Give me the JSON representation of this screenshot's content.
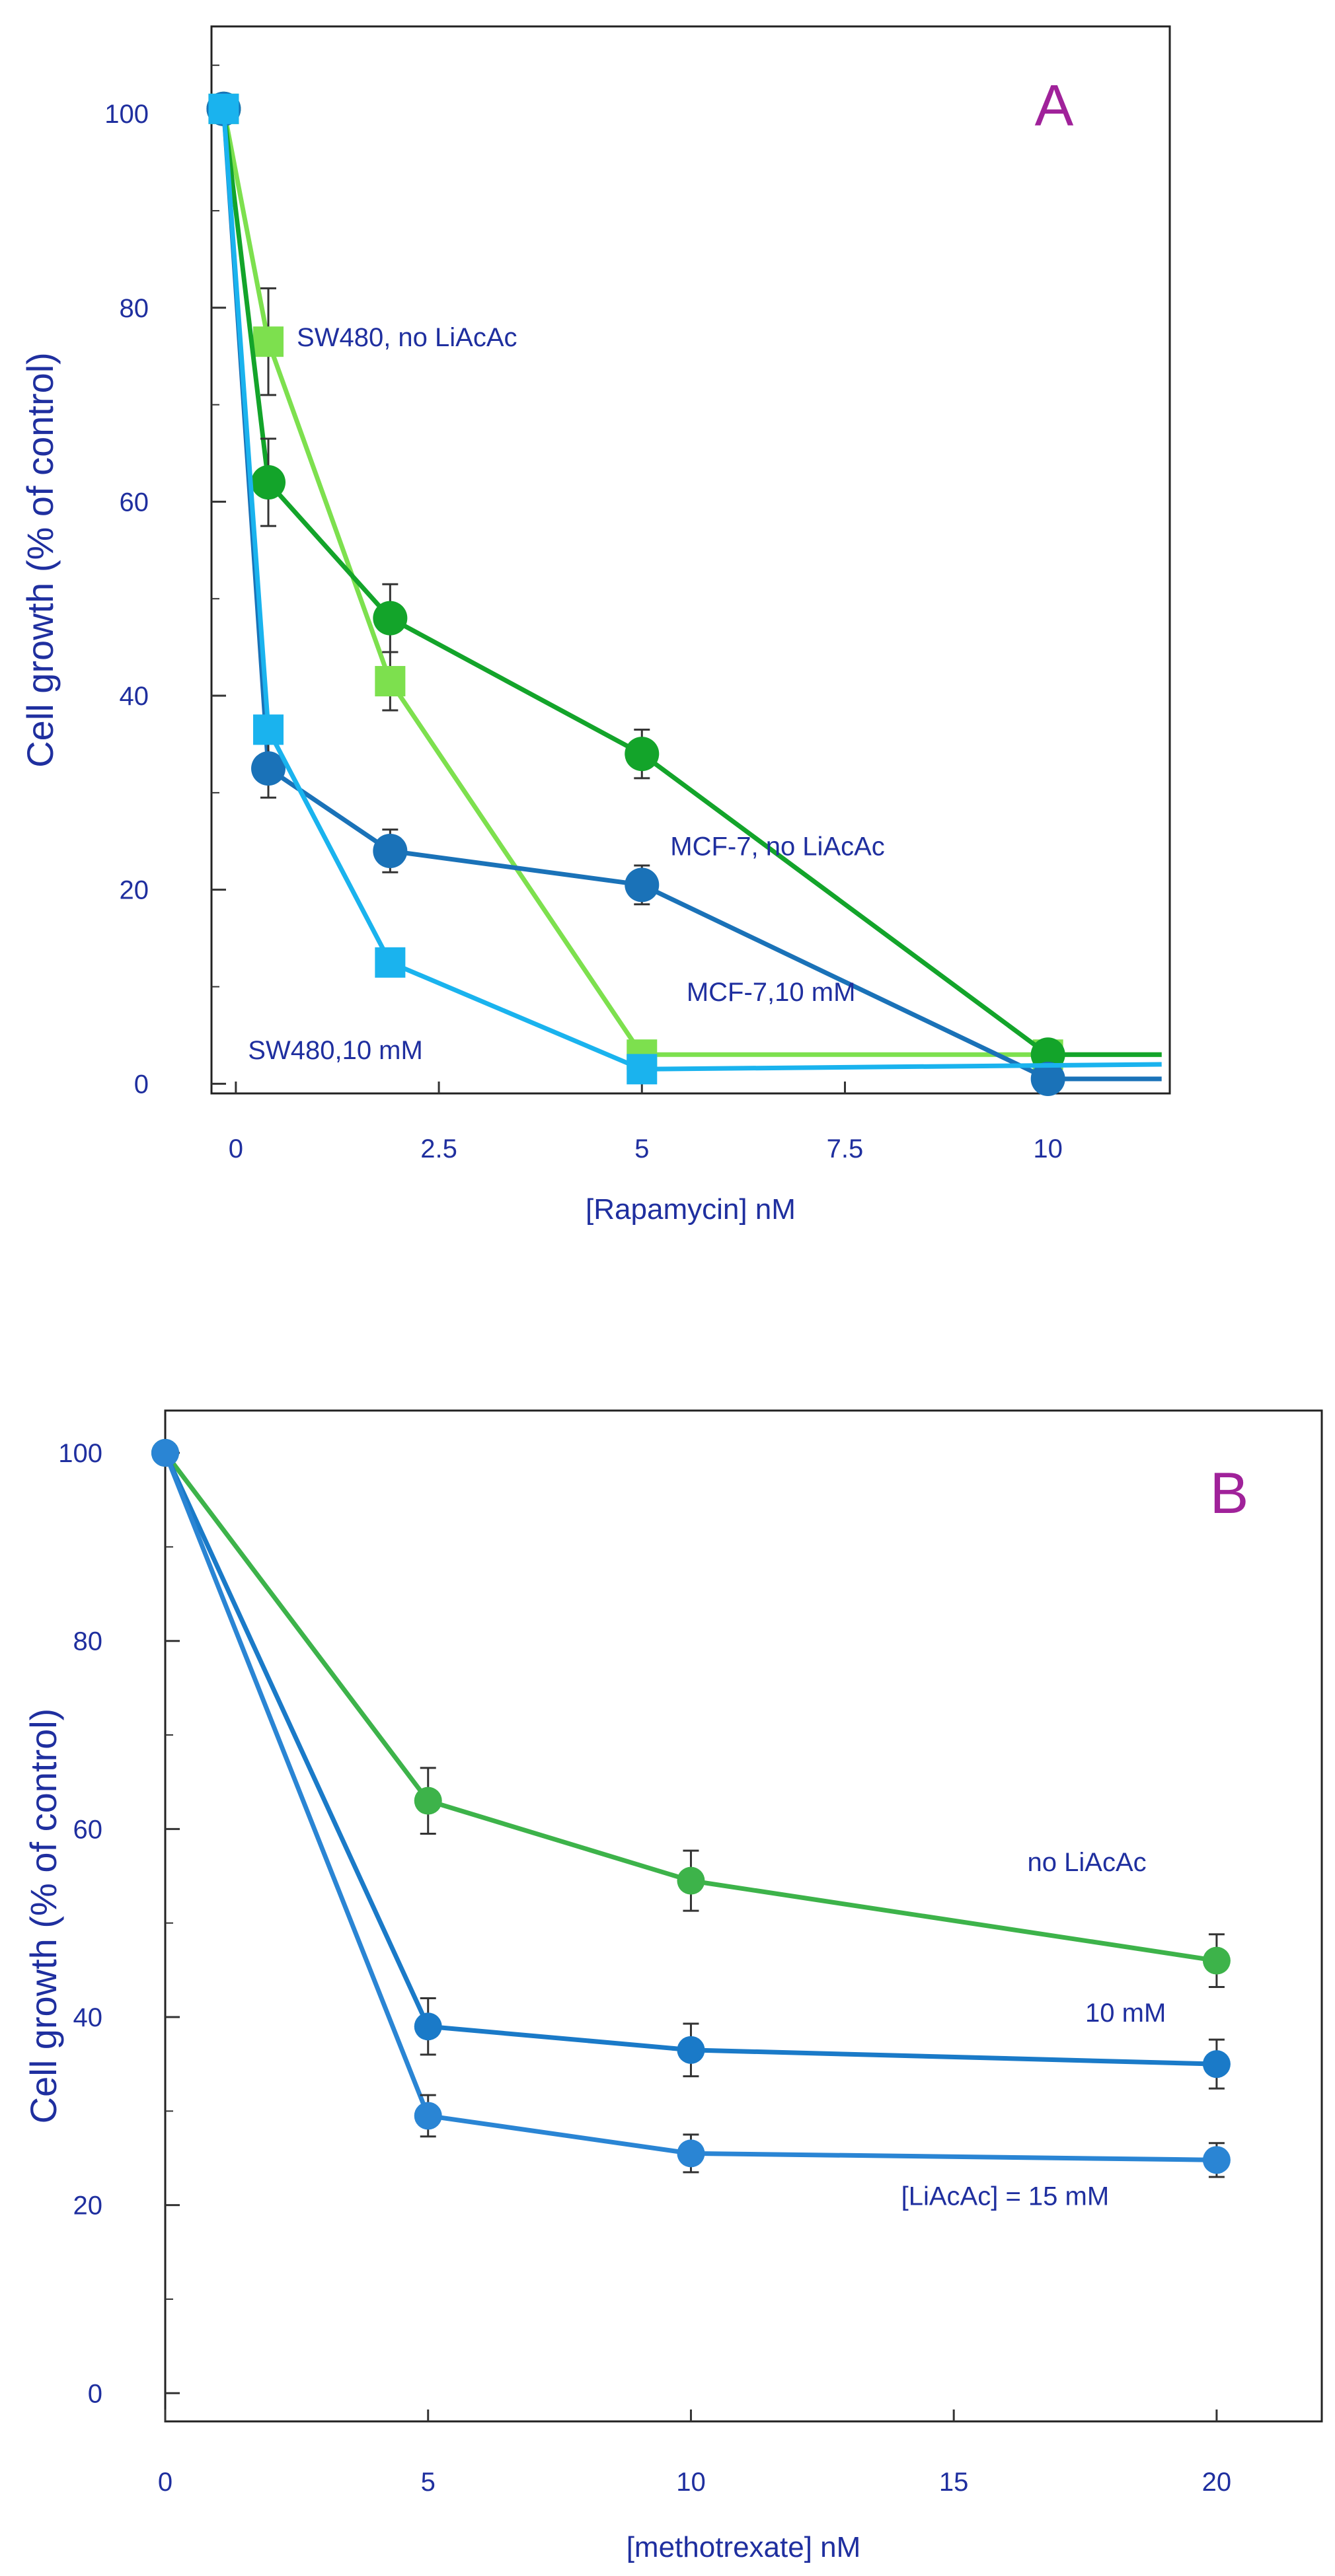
{
  "colors": {
    "axis_text": "#1f2f9f",
    "panel_letter": "#a0229a",
    "frame": "#222222",
    "errorbar": "#333333"
  },
  "chart_data": [
    {
      "type": "line",
      "panel_letter": "A",
      "title": "",
      "xlabel": "[Rapamycin] nM",
      "ylabel": "Cell growth (% of control)",
      "xlim": [
        -0.3,
        11.5
      ],
      "ylim": [
        -1,
        109
      ],
      "x_ticks": [
        0,
        2.5,
        5,
        7.5,
        10
      ],
      "x_tick_labels": [
        "0",
        "2.5",
        "5",
        "7.5",
        "10"
      ],
      "y_ticks": [
        0,
        20,
        40,
        60,
        80,
        100
      ],
      "y_tick_labels": [
        "0",
        "20",
        "40",
        "60",
        "80",
        "100"
      ],
      "y_minor_ticks": [
        10,
        30,
        50,
        70,
        90,
        105
      ],
      "series": [
        {
          "name": "SW480, no LiAcAc",
          "color": "#7de04e",
          "marker": "square",
          "x": [
            -0.15,
            0.4,
            1.9,
            5,
            10
          ],
          "y": [
            100.5,
            76.5,
            41.5,
            3,
            3
          ],
          "err": [
            0,
            5.5,
            3,
            0,
            0
          ],
          "line_end_x": 11.4
        },
        {
          "name": "MCF-7, no LiAcAc",
          "color": "#13a42a",
          "marker": "circle",
          "x": [
            -0.15,
            0.4,
            1.9,
            5,
            10
          ],
          "y": [
            100.5,
            62,
            48,
            34,
            3
          ],
          "err": [
            0,
            4.5,
            3.5,
            2.5,
            0
          ],
          "line_end_x": 11.4
        },
        {
          "name": "MCF-7,10 mM",
          "color": "#1a72b8",
          "marker": "circle",
          "x": [
            -0.15,
            0.4,
            1.9,
            5,
            10
          ],
          "y": [
            100.5,
            32.5,
            24,
            20.5,
            0.5
          ],
          "err": [
            0,
            3,
            2.2,
            2,
            0
          ],
          "line_end_x": 11.4
        },
        {
          "name": "SW480,10 mM",
          "color": "#1ab3ee",
          "marker": "square",
          "x": [
            -0.15,
            0.4,
            1.9,
            5
          ],
          "y": [
            100.5,
            36.5,
            12.5,
            1.5
          ],
          "err": [
            0,
            0,
            0,
            0
          ],
          "line_end_x": 11.4,
          "line_end_y": 2
        }
      ],
      "annotations": [
        {
          "text": "SW480, no LiAcAc",
          "x": 0.75,
          "y": 77
        },
        {
          "text": "MCF-7, no LiAcAc",
          "x": 5.35,
          "y": 24.5
        },
        {
          "text": "MCF-7,10 mM",
          "x": 5.55,
          "y": 9.5
        },
        {
          "text": "SW480,10 mM",
          "x": 0.15,
          "y": 3.5
        }
      ]
    },
    {
      "type": "line",
      "panel_letter": "B",
      "title": "",
      "xlabel": "[methotrexate] nM",
      "ylabel": "Cell growth (% of control)",
      "xlim": [
        0,
        22
      ],
      "ylim": [
        -3,
        104.5
      ],
      "x_ticks": [
        0,
        5,
        10,
        15,
        20
      ],
      "x_tick_labels": [
        "0",
        "5",
        "10",
        "15",
        "20"
      ],
      "y_ticks": [
        0,
        20,
        40,
        60,
        80,
        100
      ],
      "y_tick_labels": [
        "0",
        "20",
        "40",
        "60",
        "80",
        "100"
      ],
      "y_minor_ticks": [
        10,
        30,
        50,
        70,
        90
      ],
      "series": [
        {
          "name": "no LiAcAc",
          "color": "#3db34a",
          "marker": "circle",
          "x": [
            0,
            5,
            10,
            20
          ],
          "y": [
            100,
            63,
            54.5,
            46
          ],
          "err": [
            0,
            3.5,
            3.2,
            2.8
          ]
        },
        {
          "name": "10 mM",
          "color": "#1a7ac8",
          "marker": "circle",
          "x": [
            0,
            5,
            10,
            20
          ],
          "y": [
            100,
            39,
            36.5,
            35
          ],
          "err": [
            0,
            3,
            2.8,
            2.6
          ]
        },
        {
          "name": "[LiAcAc] = 15 mM",
          "color": "#2a85d4",
          "marker": "circle",
          "x": [
            0,
            5,
            10,
            20
          ],
          "y": [
            100,
            29.5,
            25.5,
            24.8
          ],
          "err": [
            0,
            2.2,
            2,
            1.8
          ]
        }
      ],
      "annotations": [
        {
          "text": "no LiAcAc",
          "x": 16.4,
          "y": 56.5
        },
        {
          "text": "10 mM",
          "x": 17.5,
          "y": 40.5
        },
        {
          "text": "[LiAcAc] = 15 mM",
          "x": 14,
          "y": 21
        }
      ]
    }
  ]
}
